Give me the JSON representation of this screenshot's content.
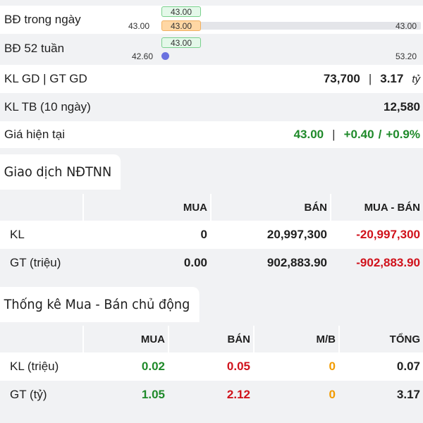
{
  "summary": {
    "intraday": {
      "label": "BĐ trong ngày",
      "low": "43.00",
      "high": "43.00",
      "marker_top": "43.00",
      "marker_bottom": "43.00"
    },
    "week52": {
      "label": "BĐ 52 tuần",
      "low": "42.60",
      "high": "53.20",
      "marker": "43.00"
    },
    "volume": {
      "label": "KL GD | GT GD",
      "volume": "73,700",
      "value": "3.17",
      "unit": "tỷ"
    },
    "avg10": {
      "label": "KL TB (10 ngày)",
      "value": "12,580"
    },
    "current": {
      "label": "Giá hiện tại",
      "price": "43.00",
      "change": "+0.40",
      "slash": "/",
      "pct": "+0.9%"
    }
  },
  "foreign": {
    "title": "Giao dịch NĐTNN",
    "headers": [
      "",
      "MUA",
      "BÁN",
      "MUA - BÁN"
    ],
    "rows": [
      {
        "label": "KL",
        "buy": "0",
        "sell": "20,997,300",
        "net": "-20,997,300"
      },
      {
        "label": "GT (triệu)",
        "buy": "0.00",
        "sell": "902,883.90",
        "net": "-902,883.90"
      }
    ]
  },
  "active": {
    "title": "Thống kê Mua - Bán chủ động",
    "headers": [
      "",
      "MUA",
      "BÁN",
      "M/B",
      "TỔNG"
    ],
    "rows": [
      {
        "label": "KL (triệu)",
        "buy": "0.02",
        "sell": "0.05",
        "mb": "0",
        "total": "0.07"
      },
      {
        "label": "GT (tỷ)",
        "buy": "1.05",
        "sell": "2.12",
        "mb": "0",
        "total": "3.17"
      }
    ]
  },
  "colors": {
    "up": "#1f8a2a",
    "down": "#d0121b",
    "neutral": "#f29b00"
  }
}
